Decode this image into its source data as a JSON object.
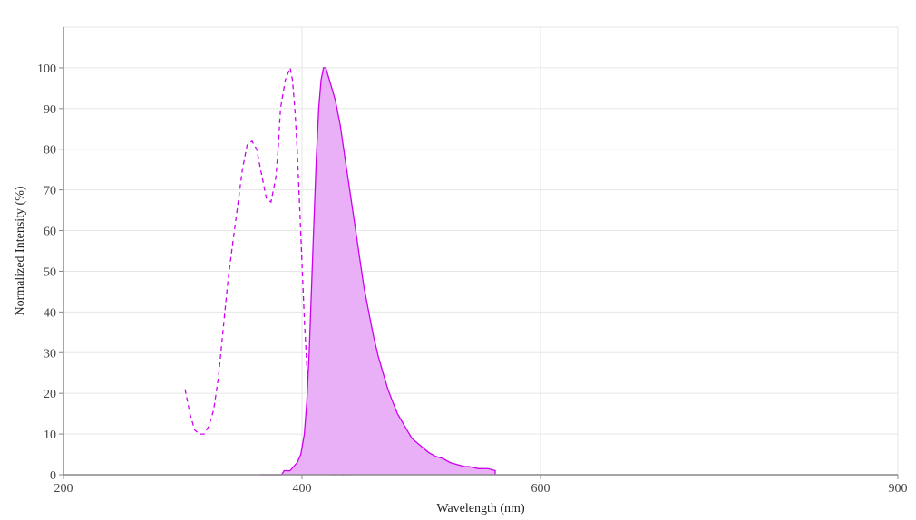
{
  "chart_data": {
    "type": "area",
    "title": "",
    "xlabel": "Wavelength (nm)",
    "ylabel": "Normalized Intensity (%)",
    "xlim": [
      200,
      900
    ],
    "ylim": [
      0,
      110
    ],
    "x_ticks": [
      200,
      400,
      600,
      900
    ],
    "y_ticks": [
      0,
      10,
      20,
      30,
      40,
      50,
      60,
      70,
      80,
      90,
      100
    ],
    "grid": true,
    "legend": "none",
    "colors": {
      "line": "#cc00ee",
      "fill": "#e9b0f7",
      "grid": "#e6e6e6",
      "axis": "#888888"
    },
    "series": [
      {
        "kind": "excitation",
        "style": "dashed",
        "x": [
          302,
          306,
          310,
          314,
          318,
          322,
          326,
          330,
          334,
          338,
          342,
          346,
          350,
          354,
          358,
          362,
          366,
          370,
          374,
          378,
          380,
          382,
          386,
          390,
          392,
          394,
          396,
          398,
          400,
          402,
          404,
          406,
          408,
          410,
          412,
          414,
          416,
          418,
          420,
          422,
          424,
          426,
          428,
          430,
          432,
          434,
          436,
          438,
          440
        ],
        "y": [
          21,
          15,
          11,
          10,
          10,
          12,
          16,
          24,
          36,
          48,
          57,
          66,
          75,
          81,
          82,
          80,
          74,
          68,
          67,
          73,
          80,
          90,
          97,
          100,
          97,
          90,
          80,
          66,
          52,
          38,
          27,
          18,
          12,
          7,
          4,
          2.5,
          1.5,
          1,
          0.5,
          0.2,
          0.1,
          0,
          0,
          0,
          0,
          0,
          0,
          0,
          0
        ]
      },
      {
        "kind": "emission",
        "style": "solid-filled",
        "x": [
          365,
          375,
          383,
          385,
          390,
          393,
          396,
          399,
          402,
          404,
          406,
          408,
          410,
          412,
          414,
          416,
          418,
          420,
          422,
          424,
          426,
          428,
          430,
          432,
          434,
          436,
          440,
          444,
          448,
          452,
          456,
          460,
          464,
          468,
          472,
          476,
          480,
          484,
          488,
          492,
          496,
          500,
          506,
          512,
          518,
          524,
          530,
          536,
          540,
          548,
          556,
          562,
          562
        ],
        "y": [
          0,
          0,
          0,
          1,
          1,
          2,
          3,
          5,
          10,
          18,
          30,
          46,
          62,
          78,
          90,
          97,
          100,
          100,
          98,
          96,
          94,
          92,
          89,
          86,
          82,
          78,
          70,
          62,
          54,
          46,
          40,
          34,
          29,
          25,
          21,
          18,
          15,
          13,
          11,
          9,
          8,
          7,
          5.5,
          4.5,
          4,
          3,
          2.5,
          2,
          2,
          1.5,
          1.5,
          1,
          0
        ]
      }
    ]
  }
}
